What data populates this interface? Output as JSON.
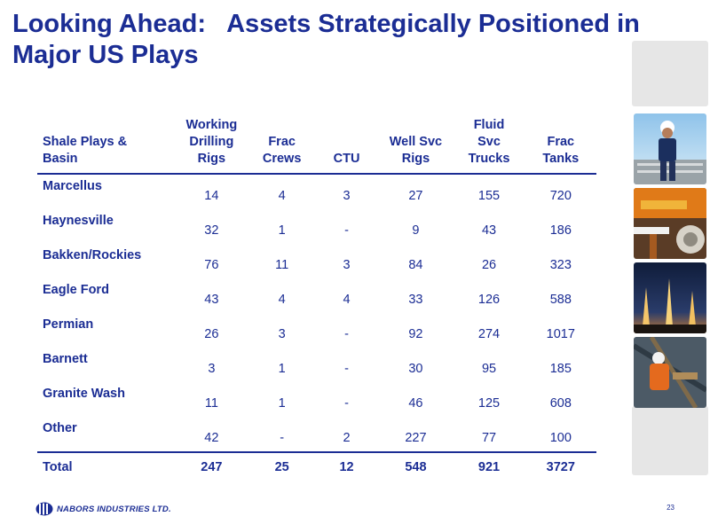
{
  "slide": {
    "title_lines": [
      "Looking Ahead:   Assets Strategically Positioned in",
      "Major US Plays"
    ],
    "page_number": "23"
  },
  "footer": {
    "company": "NABORS INDUSTRIES LTD.",
    "logo_icon": "nabors-logo-icon"
  },
  "colors": {
    "primary_text": "#1b2d94",
    "side_panel": "#e6e6e6"
  },
  "side_photos": [
    {
      "icon": "oilfield-worker-photo"
    },
    {
      "icon": "drilling-equipment-photo"
    },
    {
      "icon": "night-rigs-photo"
    },
    {
      "icon": "rig-worker-photo"
    }
  ],
  "table": {
    "headers": [
      [
        "Shale Plays &",
        "Basin"
      ],
      [
        "Working",
        "Drilling",
        "Rigs"
      ],
      [
        "Frac",
        "Crews"
      ],
      [
        "CTU"
      ],
      [
        "Well Svc",
        "Rigs"
      ],
      [
        "Fluid",
        "Svc",
        "Trucks"
      ],
      [
        "Frac",
        "Tanks"
      ]
    ],
    "rows": [
      {
        "label": "Marcellus",
        "values": [
          "14",
          "4",
          "3",
          "27",
          "155",
          "720"
        ]
      },
      {
        "label": "Haynesville",
        "values": [
          "32",
          "1",
          "-",
          "9",
          "43",
          "186"
        ]
      },
      {
        "label": "Bakken/Rockies",
        "values": [
          "76",
          "11",
          "3",
          "84",
          "26",
          "323"
        ]
      },
      {
        "label": "Eagle Ford",
        "values": [
          "43",
          "4",
          "4",
          "33",
          "126",
          "588"
        ]
      },
      {
        "label": "Permian",
        "values": [
          "26",
          "3",
          "-",
          "92",
          "274",
          "1017"
        ]
      },
      {
        "label": "Barnett",
        "values": [
          "3",
          "1",
          "-",
          "30",
          "95",
          "185"
        ]
      },
      {
        "label": "Granite Wash",
        "values": [
          "11",
          "1",
          "-",
          "46",
          "125",
          "608"
        ]
      },
      {
        "label": "Other",
        "values": [
          "42",
          "-",
          "2",
          "227",
          "77",
          "100"
        ]
      }
    ],
    "total": {
      "label": "Total",
      "values": [
        "247",
        "25",
        "12",
        "548",
        "921",
        "3727"
      ]
    }
  }
}
